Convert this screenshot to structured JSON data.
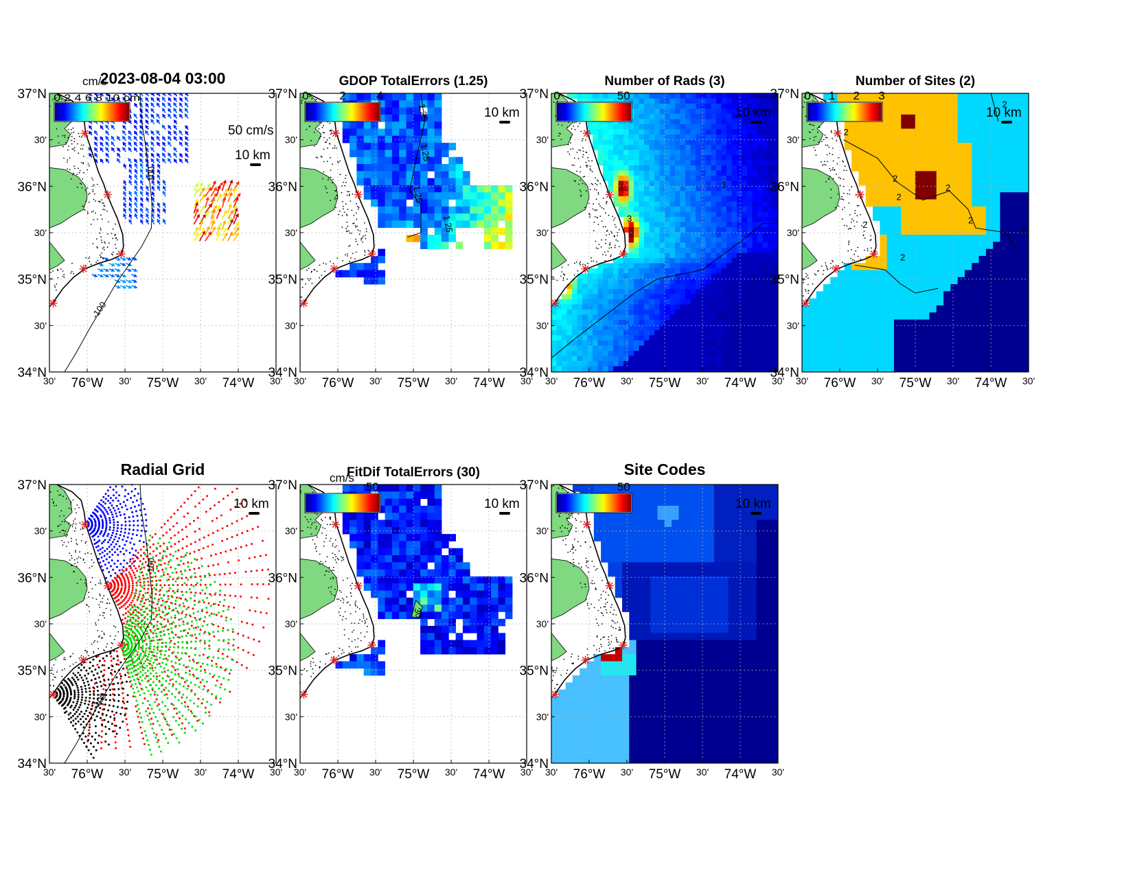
{
  "figure": {
    "timestamp": "2023-08-04 03:00",
    "colors": {
      "land": "#80d880",
      "coast": "#000000",
      "site_marker": "#e02020",
      "grid": "#b0b0b0"
    }
  },
  "axes": {
    "lat_ticks": [
      {
        "value": 37.0,
        "label": "37°N"
      },
      {
        "value": 36.5,
        "label": "30'"
      },
      {
        "value": 36.0,
        "label": "36°N"
      },
      {
        "value": 35.5,
        "label": "30'"
      },
      {
        "value": 35.0,
        "label": "35°N"
      },
      {
        "value": 34.5,
        "label": "30'"
      },
      {
        "value": 34.0,
        "label": "34°N"
      }
    ],
    "lon_ticks": [
      {
        "value": -76.5,
        "label": "30'"
      },
      {
        "value": -76.0,
        "label": "76°W"
      },
      {
        "value": -75.5,
        "label": "30'"
      },
      {
        "value": -75.0,
        "label": "75°W"
      },
      {
        "value": -74.5,
        "label": "30'"
      },
      {
        "value": -74.0,
        "label": "74°W"
      },
      {
        "value": -73.5,
        "label": "30'"
      }
    ],
    "lon_range": [
      -76.5,
      -73.5
    ],
    "lat_range": [
      34.0,
      37.0
    ]
  },
  "sites": [
    {
      "lon": -76.03,
      "lat": 36.57
    },
    {
      "lon": -75.73,
      "lat": 35.91
    },
    {
      "lon": -75.55,
      "lat": 35.27
    },
    {
      "lon": -76.05,
      "lat": 35.11
    },
    {
      "lon": -76.45,
      "lat": 34.74
    }
  ],
  "panels": [
    {
      "id": "vectors",
      "title": "2023-08-04 03:00",
      "colorbar_unit": "cm/s",
      "colorbar_ticks": [],
      "colorbar_tick_text": "0 2 4 6 8 10 cm",
      "scale_label": "10 km",
      "vector_scale_label": "50 cm/s",
      "contour_labels": [
        "100",
        "-100"
      ]
    },
    {
      "id": "gdop",
      "title": "GDOP TotalErrors (1.25)",
      "colorbar_ticks": [
        "0",
        "2",
        "4"
      ],
      "scale_label": "10 km",
      "contour_labels": [
        "1.25",
        "1.25",
        "1.25",
        "1.25"
      ]
    },
    {
      "id": "nrads",
      "title": "Number of Rads (3)",
      "colorbar_ticks": [
        "0",
        "50"
      ],
      "scale_label": "10 km",
      "contour_labels": [
        "3",
        "3"
      ]
    },
    {
      "id": "nsites",
      "title": "Number of Sites (2)",
      "colorbar_ticks": [
        "0",
        "1",
        "2",
        "3"
      ],
      "scale_label": "10 km",
      "contour_labels": [
        "2",
        "2",
        "2",
        "2",
        "2",
        "2",
        "2",
        "2",
        "2"
      ]
    },
    {
      "id": "radgrid",
      "title": "Radial Grid",
      "scale_label": "10 km",
      "contour_labels": [
        "100",
        "-100"
      ]
    },
    {
      "id": "fitdif",
      "title": "FitDif TotalErrors (30)",
      "colorbar_unit": "cm/s",
      "colorbar_ticks": [
        "50"
      ],
      "scale_label": "10 km",
      "contour_labels": [
        "30"
      ]
    },
    {
      "id": "sitecodes",
      "title": "Site Codes",
      "colorbar_ticks": [
        "50"
      ],
      "scale_label": "10 km"
    }
  ],
  "chart_data": [
    {
      "type": "heatmap",
      "title": "2023-08-04 03:00",
      "description_value_unit": "cm/s",
      "ylim": [
        34,
        37
      ],
      "xlim": [
        -76.5,
        -73.5
      ],
      "max_speed_cm_s": 50
    },
    {
      "type": "heatmap",
      "title": "GDOP TotalErrors (1.25)",
      "clim": [
        0,
        4
      ],
      "contour_level": 1.25,
      "ylim": [
        34,
        37
      ],
      "xlim": [
        -76.5,
        -73.5
      ]
    },
    {
      "type": "heatmap",
      "title": "Number of Rads (3)",
      "clim": [
        0,
        50
      ],
      "contour_level": 3,
      "ylim": [
        34,
        37
      ],
      "xlim": [
        -76.5,
        -73.5
      ]
    },
    {
      "type": "heatmap",
      "title": "Number of Sites (2)",
      "clim": [
        0,
        3
      ],
      "contour_level": 2,
      "ylim": [
        34,
        37
      ],
      "xlim": [
        -76.5,
        -73.5
      ]
    },
    {
      "type": "scatter",
      "title": "Radial Grid",
      "ylim": [
        34,
        37
      ],
      "xlim": [
        -76.5,
        -73.5
      ],
      "series_colors": [
        "#0000ff",
        "#ff0000",
        "#00dd00",
        "#000000"
      ]
    },
    {
      "type": "heatmap",
      "title": "FitDif TotalErrors (30)",
      "clim": [
        0,
        50
      ],
      "contour_level": 30,
      "ylim": [
        34,
        37
      ],
      "xlim": [
        -76.5,
        -73.5
      ]
    },
    {
      "type": "heatmap",
      "title": "Site Codes",
      "clim": [
        0,
        50
      ],
      "ylim": [
        34,
        37
      ],
      "xlim": [
        -76.5,
        -73.5
      ]
    }
  ]
}
